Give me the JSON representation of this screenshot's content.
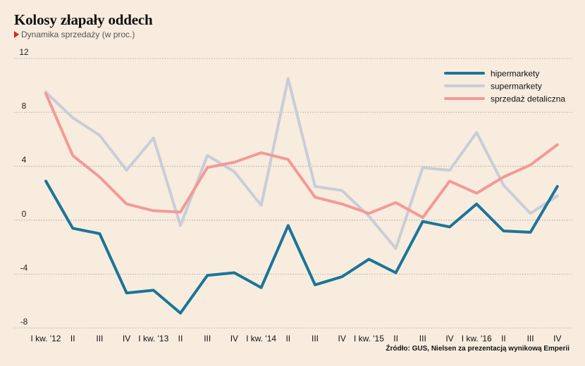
{
  "title": "Kolosy złapały oddech",
  "subtitle": "Dynamika sprzedaży (w proc.)",
  "source": "Źródło: GUS, Nielsen za prezentacją wynikową Emperii",
  "colors": {
    "hipermarkety": "#1a7598",
    "supermarkety": "#c9cdd7",
    "sprzedaz": "#f29a97",
    "grid": "#9a9a9a",
    "subtitle_marker": "#d8231c"
  },
  "chart_data": {
    "type": "line",
    "categories": [
      "I kw. '12",
      "II",
      "III",
      "IV",
      "I kw. '13",
      "II",
      "III",
      "IV",
      "I kw. '14",
      "II",
      "III",
      "IV",
      "I kw. '15",
      "II",
      "III",
      "IV",
      "I kw. '16",
      "II",
      "III",
      "IV"
    ],
    "series": [
      {
        "name": "hipermarkety",
        "values": [
          2.9,
          -0.6,
          -1.0,
          -5.4,
          -5.2,
          -6.9,
          -4.1,
          -3.9,
          -5.0,
          -0.4,
          -4.8,
          -4.2,
          -2.9,
          -3.9,
          -0.1,
          -0.5,
          1.2,
          -0.8,
          -0.9,
          2.5
        ]
      },
      {
        "name": "supermarkety",
        "values": [
          9.5,
          7.6,
          6.3,
          3.7,
          6.1,
          -0.4,
          4.8,
          3.6,
          1.1,
          10.5,
          2.5,
          2.2,
          0.3,
          -2.1,
          3.9,
          3.7,
          6.5,
          2.6,
          0.5,
          1.8
        ]
      },
      {
        "name": "sprzedaż detaliczna",
        "values": [
          9.4,
          4.8,
          3.2,
          1.2,
          0.7,
          0.6,
          3.9,
          4.3,
          5.0,
          4.5,
          1.7,
          1.2,
          0.5,
          1.3,
          0.2,
          2.9,
          2.0,
          3.2,
          4.1,
          5.6
        ]
      }
    ],
    "yticks": [
      12,
      8,
      4,
      0,
      -4,
      -8
    ],
    "ylim": [
      -8,
      12
    ],
    "grid": true,
    "legend_position": "top-right"
  }
}
